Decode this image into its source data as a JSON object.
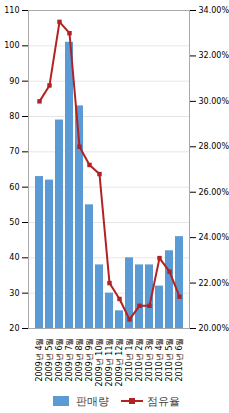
{
  "chart_data": {
    "type": "bar",
    "categories": [
      "2009년\n4월",
      "2009년\n5월",
      "2009년\n6월",
      "2009년\n7월",
      "2009년\n8월",
      "2009년\n9월",
      "2009년\n10월",
      "2009년\n11월",
      "2009년\n12월",
      "2010년\n1월",
      "2010년\n2월",
      "2010년\n3월",
      "2010년\n4월",
      "2010년\n5월",
      "2010년\n6월"
    ],
    "series": [
      {
        "name": "판매량",
        "type": "bar",
        "color": "#5B9BD5",
        "values": [
          63,
          62,
          79,
          101,
          83,
          55,
          38,
          30,
          25,
          40,
          38,
          38,
          32,
          42,
          46
        ]
      },
      {
        "name": "점유율",
        "type": "line",
        "color": "#B22222",
        "marker": "square",
        "axis": "y2",
        "values": [
          0.3,
          0.307,
          0.335,
          0.33,
          0.28,
          0.272,
          0.268,
          0.22,
          0.213,
          0.204,
          0.21,
          0.21,
          0.231,
          0.225,
          0.214
        ]
      }
    ],
    "ylim": [
      20,
      110
    ],
    "yticks": [
      20,
      30,
      40,
      50,
      60,
      70,
      80,
      90,
      100,
      110
    ],
    "y2lim": [
      0.2,
      0.34
    ],
    "y2ticks": [
      {
        "value": 0.2,
        "label": "20.00%"
      },
      {
        "value": 0.22,
        "label": "22.00%"
      },
      {
        "value": 0.24,
        "label": "24.00%"
      },
      {
        "value": 0.26,
        "label": "26.00%"
      },
      {
        "value": 0.28,
        "label": "28.00%"
      },
      {
        "value": 0.3,
        "label": "30.00%"
      },
      {
        "value": 0.32,
        "label": "32.00%"
      },
      {
        "value": 0.34,
        "label": "34.00%"
      }
    ],
    "grid": true,
    "legend": "bottom"
  }
}
